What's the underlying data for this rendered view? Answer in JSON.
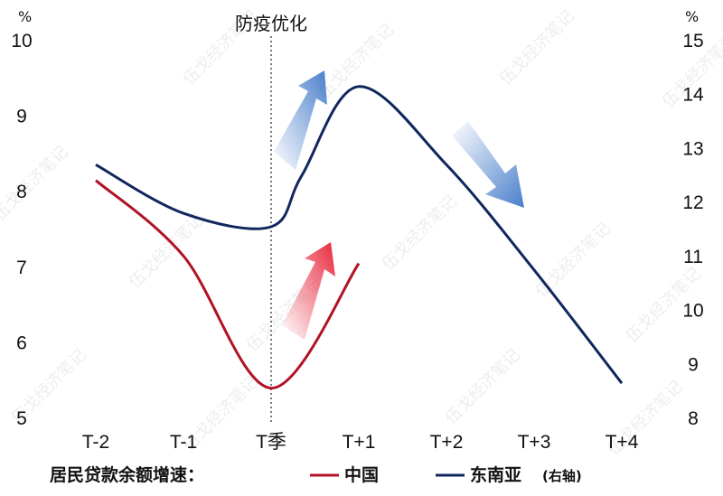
{
  "chart_data": {
    "type": "line",
    "categories": [
      "T-2",
      "T-1",
      "T季",
      "T+1",
      "T+2",
      "T+3",
      "T+4"
    ],
    "left_axis": {
      "unit": "%",
      "ticks": [
        "10",
        "9",
        "8",
        "7",
        "6",
        "5"
      ],
      "ylim": [
        5,
        10
      ]
    },
    "right_axis": {
      "unit": "%",
      "ticks": [
        "15",
        "14",
        "13",
        "12",
        "11",
        "10",
        "9",
        "8"
      ],
      "ylim": [
        8,
        15
      ]
    },
    "annotation": "防疫优化",
    "series": [
      {
        "name": "中国",
        "axis": "left",
        "color": "#b01226",
        "points": [
          [
            -2.0,
            8.15
          ],
          [
            -1.0,
            7.15
          ],
          [
            0.0,
            5.4
          ],
          [
            1.0,
            7.05
          ]
        ]
      },
      {
        "name": "东南亚",
        "axis_note": "(右轴)",
        "axis": "right",
        "color": "#12275e",
        "points": [
          [
            -2.0,
            12.7
          ],
          [
            -1.0,
            11.8
          ],
          [
            0.0,
            11.55
          ],
          [
            0.35,
            12.5
          ],
          [
            1.0,
            14.15
          ],
          [
            2.0,
            12.7
          ],
          [
            3.0,
            10.75
          ],
          [
            4.0,
            8.65
          ]
        ]
      }
    ],
    "legend": {
      "title": "居民贷款余额增速："
    },
    "watermark": "伍戈经济笔记"
  }
}
